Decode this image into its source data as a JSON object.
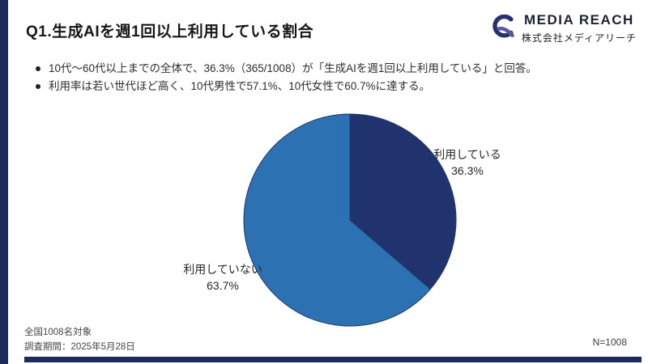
{
  "slide": {
    "title": "Q1.生成AIを週1回以上利用している割合",
    "bullets": [
      "10代～60代以上までの全体で、36.3%（365/1008）が「生成AIを週1回以上利用している」と回答。",
      "利用率は若い世代ほど高く、10代男性で57.1%、10代女性で60.7%に達する。"
    ],
    "footer": {
      "target": "全国1008名対象",
      "period": "調査期間：2025年5月28日",
      "sample_size": "N=1008"
    }
  },
  "logo": {
    "name": "MEDIA REACH",
    "company": "株式会社メディアリーチ"
  },
  "chart_data": {
    "type": "pie",
    "title": "生成AIを週1回以上利用している割合",
    "labels": [
      "利用している",
      "利用していない"
    ],
    "values": [
      36.3,
      63.7
    ],
    "value_labels": [
      "36.3%",
      "63.7%"
    ],
    "colors": [
      "#21336f",
      "#2c71b2"
    ],
    "start_angle_deg": -90,
    "direction": "clockwise",
    "legend_position": "none",
    "label_style": "outside"
  },
  "colors": {
    "accent_navy": "#1d2a5c",
    "slice_using": "#21336f",
    "slice_not_using": "#2c71b2",
    "pie_outline": "#1f3868"
  }
}
